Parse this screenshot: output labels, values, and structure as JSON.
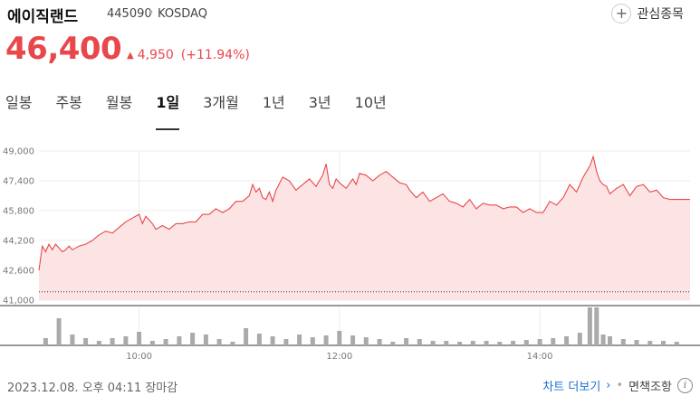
{
  "header": {
    "name": "에이직랜드",
    "code": "445090",
    "separator": "•",
    "market": "KOSDAQ",
    "favorite_label": "관심종목",
    "favorite_icon": "+"
  },
  "quote": {
    "price": "46,400",
    "change": "4,950",
    "change_percent": "(+11.94%)",
    "direction_icon": "▲",
    "up_color": "#e8474b"
  },
  "tabs": [
    "일봉",
    "주봉",
    "월봉",
    "1일",
    "3개월",
    "1년",
    "3년",
    "10년"
  ],
  "active_tab": "1일",
  "chart_data": {
    "type": "area",
    "line_color": "#e8474b",
    "fill_color": "#fde4e4",
    "y_ticks": [
      41000,
      42600,
      44200,
      45800,
      47400,
      49000
    ],
    "y_tick_labels": [
      "41,000",
      "42,600",
      "44,200",
      "45,800",
      "47,400",
      "49,000"
    ],
    "ylim": [
      41000,
      49000
    ],
    "prev_close": 41450,
    "x_ticks": [
      "10:00",
      "12:00",
      "14:00"
    ],
    "x_tick_minutes": [
      60,
      180,
      300
    ],
    "xlim": [
      0,
      390
    ],
    "grid": true,
    "price_series": {
      "minutes": [
        0,
        2,
        4,
        6,
        8,
        10,
        12,
        14,
        16,
        18,
        20,
        24,
        28,
        32,
        36,
        40,
        44,
        48,
        52,
        56,
        60,
        62,
        64,
        66,
        68,
        70,
        74,
        78,
        82,
        86,
        90,
        94,
        98,
        102,
        106,
        110,
        114,
        118,
        122,
        126,
        128,
        130,
        132,
        134,
        136,
        138,
        140,
        142,
        146,
        150,
        154,
        158,
        162,
        166,
        170,
        172,
        174,
        176,
        178,
        180,
        184,
        188,
        190,
        192,
        196,
        200,
        204,
        208,
        212,
        216,
        220,
        222,
        226,
        230,
        234,
        238,
        242,
        246,
        250,
        254,
        258,
        262,
        266,
        270,
        274,
        278,
        282,
        286,
        290,
        294,
        298,
        302,
        306,
        310,
        314,
        318,
        322,
        326,
        330,
        332,
        334,
        336,
        338,
        340,
        342,
        346,
        350,
        354,
        358,
        362,
        366,
        370,
        374,
        378,
        382,
        386,
        390
      ],
      "values": [
        42600,
        43900,
        43600,
        44000,
        43700,
        44000,
        43800,
        43600,
        43700,
        43900,
        43700,
        43900,
        44000,
        44200,
        44500,
        44700,
        44600,
        44900,
        45200,
        45400,
        45600,
        45100,
        45500,
        45300,
        45100,
        44800,
        45000,
        44800,
        45100,
        45100,
        45200,
        45200,
        45600,
        45600,
        45900,
        45700,
        45900,
        46300,
        46300,
        46600,
        47200,
        46800,
        47000,
        46500,
        46400,
        46800,
        46300,
        46900,
        47600,
        47400,
        46900,
        47200,
        47500,
        47100,
        47700,
        48300,
        47200,
        47000,
        47500,
        47300,
        47000,
        47500,
        47200,
        47800,
        47700,
        47400,
        47700,
        47900,
        47600,
        47300,
        47200,
        46900,
        46500,
        46800,
        46300,
        46500,
        46700,
        46300,
        46200,
        46000,
        46400,
        45900,
        46200,
        46100,
        46100,
        45900,
        46000,
        46000,
        45700,
        45900,
        45700,
        45700,
        46300,
        46100,
        46500,
        47200,
        46800,
        47600,
        48200,
        48700,
        47900,
        47400,
        47200,
        47100,
        46700,
        47000,
        47200,
        46600,
        47100,
        47200,
        46800,
        46900,
        46500,
        46400,
        46400,
        46400,
        46400
      ]
    },
    "volume_series": {
      "minutes": [
        4,
        12,
        20,
        28,
        36,
        44,
        52,
        60,
        68,
        76,
        84,
        92,
        100,
        108,
        116,
        124,
        132,
        140,
        148,
        156,
        164,
        172,
        180,
        188,
        196,
        204,
        212,
        220,
        228,
        236,
        244,
        252,
        260,
        268,
        276,
        284,
        292,
        300,
        308,
        316,
        324,
        330,
        334,
        338,
        342,
        350,
        358,
        366,
        374,
        382
      ],
      "values": [
        8,
        30,
        12,
        8,
        5,
        8,
        10,
        15,
        5,
        7,
        10,
        14,
        12,
        7,
        4,
        19,
        13,
        10,
        7,
        12,
        9,
        11,
        16,
        11,
        9,
        7,
        4,
        8,
        7,
        5,
        5,
        4,
        5,
        5,
        4,
        5,
        6,
        7,
        8,
        10,
        14,
        42,
        42,
        12,
        10,
        7,
        6,
        5,
        5,
        4
      ],
      "max": 42
    }
  },
  "footer": {
    "timestamp": "2023.12.08. 오후 04:11 장마감",
    "more_link": "차트 더보기",
    "more_chevron": "›",
    "separator": "•",
    "disclaimer": "면책조항",
    "info_icon": "i"
  }
}
